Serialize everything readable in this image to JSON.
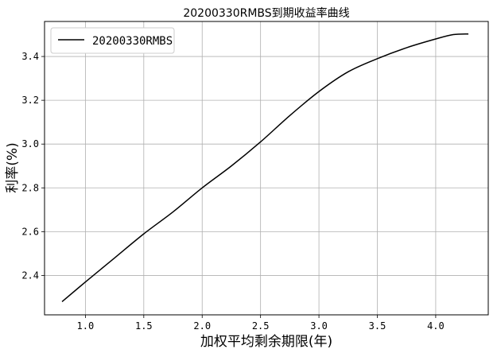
{
  "chart_data": {
    "type": "line",
    "title": "20200330RMBS到期收益率曲线",
    "xlabel": "加权平均剩余期限(年)",
    "ylabel": "利率(%)",
    "xlim": [
      0.65,
      4.45
    ],
    "ylim": [
      2.22,
      3.56
    ],
    "grid": true,
    "legend_position": "top-left",
    "x_ticks": [
      "1.0",
      "1.5",
      "2.0",
      "2.5",
      "3.0",
      "3.5",
      "4.0"
    ],
    "y_ticks": [
      "2.4",
      "2.6",
      "2.8",
      "3.0",
      "3.2",
      "3.4"
    ],
    "series": [
      {
        "name": "20200330RMBS",
        "color": "#000000",
        "x": [
          0.8,
          1.0,
          1.25,
          1.5,
          1.75,
          2.0,
          2.25,
          2.5,
          2.75,
          3.0,
          3.25,
          3.5,
          3.75,
          4.0,
          4.15,
          4.28
        ],
        "y": [
          2.28,
          2.37,
          2.48,
          2.59,
          2.69,
          2.8,
          2.9,
          3.01,
          3.13,
          3.24,
          3.33,
          3.39,
          3.44,
          3.48,
          3.5,
          3.503
        ]
      }
    ]
  }
}
